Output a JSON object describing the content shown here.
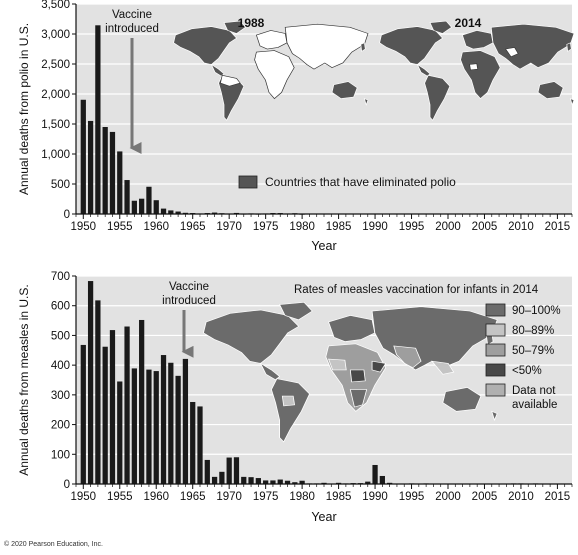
{
  "chart_data": [
    {
      "type": "bar",
      "ylabel": "Annual deaths from polio in U.S.",
      "xlabel": "Year",
      "ylim": [
        0,
        3500
      ],
      "yticks": [
        0,
        500,
        1000,
        1500,
        2000,
        2500,
        3000,
        3500
      ],
      "xlim": [
        1949,
        2017
      ],
      "xticks": [
        1950,
        1955,
        1960,
        1965,
        1970,
        1975,
        1980,
        1985,
        1990,
        1995,
        2000,
        2005,
        2010,
        2015
      ],
      "bar_color": "#1a1a1a",
      "x": [
        1950,
        1951,
        1952,
        1953,
        1954,
        1955,
        1956,
        1957,
        1958,
        1959,
        1960,
        1961,
        1962,
        1963,
        1964,
        1965,
        1966,
        1967,
        1968,
        1969,
        1970,
        1971,
        1972,
        1973,
        1974,
        1975,
        1976,
        1977,
        1978,
        1979,
        1980
      ],
      "values": [
        1904,
        1551,
        3145,
        1450,
        1368,
        1043,
        566,
        221,
        255,
        454,
        230,
        90,
        60,
        41,
        20,
        16,
        9,
        16,
        24,
        13,
        7,
        18,
        4,
        10,
        3,
        9,
        16,
        16,
        9,
        13,
        2
      ],
      "annotation": {
        "text_line1": "Vaccine",
        "text_line2": "introduced",
        "x": 1956.3,
        "arrow_from": 3250,
        "arrow_to": 1100
      },
      "maps": [
        {
          "label": "1988",
          "note": "most countries not yet polio-free"
        },
        {
          "label": "2014",
          "note": "nearly all countries polio-free"
        }
      ],
      "legend": [
        {
          "label": "Countries that have eliminated polio",
          "color": "#555555"
        }
      ]
    },
    {
      "type": "bar",
      "ylabel": "Annual deaths from measles in U.S.",
      "xlabel": "Year",
      "ylim": [
        0,
        700
      ],
      "yticks": [
        0,
        100,
        200,
        300,
        400,
        500,
        600,
        700
      ],
      "xlim": [
        1949,
        2017
      ],
      "xticks": [
        1950,
        1955,
        1960,
        1965,
        1970,
        1975,
        1980,
        1985,
        1990,
        1995,
        2000,
        2005,
        2010,
        2015
      ],
      "bar_color": "#1a1a1a",
      "x": [
        1950,
        1951,
        1952,
        1953,
        1954,
        1955,
        1956,
        1957,
        1958,
        1959,
        1960,
        1961,
        1962,
        1963,
        1964,
        1965,
        1966,
        1967,
        1968,
        1969,
        1970,
        1971,
        1972,
        1973,
        1974,
        1975,
        1976,
        1977,
        1978,
        1979,
        1980,
        1981,
        1982,
        1983,
        1984,
        1985,
        1986,
        1987,
        1988,
        1989,
        1990,
        1991,
        1992,
        1993,
        1994,
        1995,
        1996,
        1997,
        1998,
        1999,
        2000,
        2001,
        2002,
        2003,
        2004,
        2005,
        2006,
        2007,
        2008,
        2009,
        2010,
        2011,
        2012,
        2013,
        2014
      ],
      "values": [
        468,
        683,
        618,
        462,
        518,
        345,
        530,
        389,
        552,
        385,
        380,
        434,
        408,
        364,
        421,
        276,
        261,
        81,
        24,
        41,
        89,
        90,
        24,
        23,
        20,
        12,
        12,
        15,
        11,
        6,
        11,
        2,
        2,
        4,
        1,
        4,
        2,
        3,
        3,
        8,
        64,
        27,
        4,
        0,
        0,
        2,
        1,
        2,
        0,
        1,
        1,
        1,
        0,
        1,
        0,
        1,
        0,
        0,
        0,
        2,
        2,
        0,
        2,
        0,
        0
      ],
      "annotation": {
        "text_line1": "Vaccine",
        "text_line2": "introduced",
        "x": 1963.5,
        "arrow_from": 665,
        "arrow_to": 445
      },
      "map_title": "Rates of measles vaccination for infants in 2014",
      "legend": [
        {
          "label": "90–100%",
          "color": "#6b6b6b"
        },
        {
          "label": "80–89%",
          "color": "#c4c4c4"
        },
        {
          "label": "50–79%",
          "color": "#9e9e9e"
        },
        {
          "label": "<50%",
          "color": "#484848"
        },
        {
          "label": "Data not available",
          "label_line1": "Data not",
          "label_line2": "available",
          "color": "#b0b0b0"
        }
      ]
    }
  ],
  "copyright": "© 2020 Pearson Education, Inc."
}
